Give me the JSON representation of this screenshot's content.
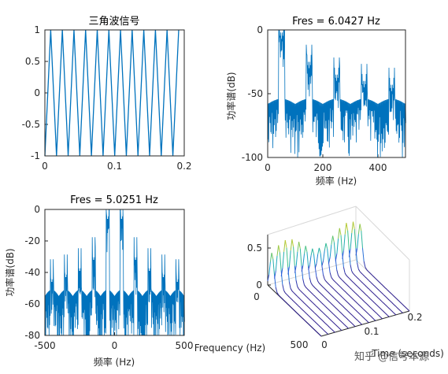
{
  "chart_data": [
    {
      "type": "line",
      "title": "三角波信号",
      "xlim": [
        0,
        0.2
      ],
      "ylim": [
        -1,
        1
      ],
      "xticks": [
        "0",
        "0.1",
        "0.2"
      ],
      "yticks": [
        "1",
        "0.5",
        "0",
        "-0.5",
        "-1"
      ],
      "period": 0.0167,
      "color": "#0072BD"
    },
    {
      "type": "line",
      "title": "Fres = 6.0427 Hz",
      "xlabel": "频率 (Hz)",
      "ylabel": "功率谱(dB)",
      "xlim": [
        0,
        500
      ],
      "ylim": [
        -100,
        0
      ],
      "xticks": [
        "0",
        "200",
        "400"
      ],
      "yticks": [
        "0",
        "-50",
        "-100"
      ],
      "peaks": [
        {
          "x": 50,
          "y": -7
        },
        {
          "x": 150,
          "y": -30
        },
        {
          "x": 250,
          "y": -40
        },
        {
          "x": 350,
          "y": -45
        },
        {
          "x": 450,
          "y": -48
        }
      ],
      "floor": -58,
      "color": "#0072BD"
    },
    {
      "type": "line",
      "title": "Fres = 5.0251 Hz",
      "xlabel": "频率 (Hz)",
      "ylabel": "功率谱(dB)",
      "xlim": [
        -500,
        500
      ],
      "ylim": [
        -80,
        0
      ],
      "xticks": [
        "-500",
        "0",
        "500"
      ],
      "yticks": [
        "0",
        "-20",
        "-40",
        "-60",
        "-80"
      ],
      "peaks": [
        {
          "x": -450,
          "y": -50
        },
        {
          "x": -350,
          "y": -47
        },
        {
          "x": -250,
          "y": -43
        },
        {
          "x": -150,
          "y": -36
        },
        {
          "x": -50,
          "y": -10
        },
        {
          "x": 50,
          "y": -10
        },
        {
          "x": 150,
          "y": -36
        },
        {
          "x": 250,
          "y": -43
        },
        {
          "x": 350,
          "y": -47
        },
        {
          "x": 450,
          "y": -50
        }
      ],
      "floor": -55,
      "color": "#0072BD"
    },
    {
      "type": "area",
      "title": "",
      "xlabel": "Frequency (Hz)",
      "ylabel": "Time (seconds)",
      "zticks": [
        "0.5",
        "0"
      ],
      "xticks": [
        "0",
        "500"
      ],
      "yticks": [
        "0",
        "0.1",
        "0.2"
      ],
      "zlim": [
        0,
        0.7
      ],
      "series_count": 14,
      "peak_height": 0.65,
      "colormap": [
        "#2A1A8C",
        "#2E5EDC",
        "#16A0C8",
        "#38C08E",
        "#A6C83A",
        "#F2D22E"
      ]
    }
  ],
  "watermark": "知乎 @信号本源"
}
